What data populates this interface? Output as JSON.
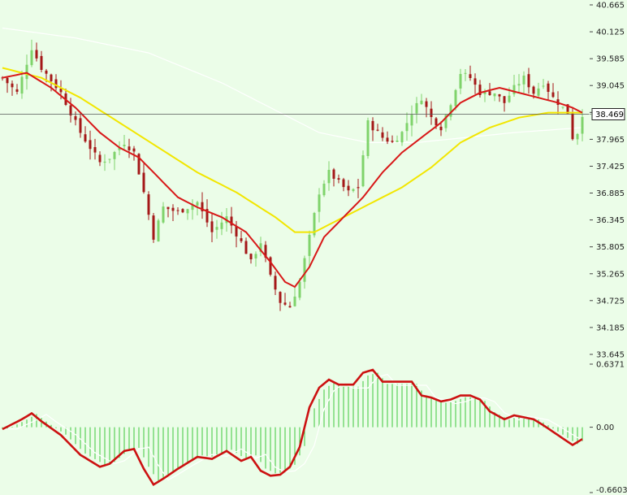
{
  "chart_data": [
    {
      "type": "candlestick",
      "panel": "price",
      "title": "",
      "ylim": [
        33.645,
        40.665
      ],
      "y_ticks": [
        "40.665",
        "40.125",
        "39.585",
        "39.045",
        "38.505",
        "37.965",
        "37.425",
        "36.885",
        "36.345",
        "35.805",
        "35.265",
        "34.725",
        "34.185",
        "33.645"
      ],
      "current_price": "38.469",
      "candle_count": 120,
      "colors": {
        "up": "#7fd36b",
        "down": "#a41818",
        "ma_fast": "#d81818",
        "ma_slow": "#f2e600",
        "ma_long": "#ffffff",
        "price_line": "#555555"
      },
      "close_path": [
        [
          0,
          39.2
        ],
        [
          3,
          38.9
        ],
        [
          6,
          39.8
        ],
        [
          8,
          39.4
        ],
        [
          12,
          38.9
        ],
        [
          16,
          38.1
        ],
        [
          20,
          37.5
        ],
        [
          22,
          37.6
        ],
        [
          25,
          37.9
        ],
        [
          27,
          37.7
        ],
        [
          29,
          36.9
        ],
        [
          31,
          36.0
        ],
        [
          33,
          36.6
        ],
        [
          36,
          36.5
        ],
        [
          40,
          36.7
        ],
        [
          43,
          36.1
        ],
        [
          46,
          36.4
        ],
        [
          49,
          35.9
        ],
        [
          51,
          35.5
        ],
        [
          53,
          35.9
        ],
        [
          55,
          35.2
        ],
        [
          57,
          34.7
        ],
        [
          59,
          34.6
        ],
        [
          61,
          35.1
        ],
        [
          63,
          36.0
        ],
        [
          65,
          36.9
        ],
        [
          67,
          37.3
        ],
        [
          69,
          37.1
        ],
        [
          71,
          36.9
        ],
        [
          73,
          37.0
        ],
        [
          75,
          38.3
        ],
        [
          78,
          38.0
        ],
        [
          80,
          37.9
        ],
        [
          82,
          38.1
        ],
        [
          84,
          38.5
        ],
        [
          86,
          38.8
        ],
        [
          88,
          38.4
        ],
        [
          90,
          38.2
        ],
        [
          92,
          38.7
        ],
        [
          94,
          39.3
        ],
        [
          96,
          39.2
        ],
        [
          98,
          38.9
        ],
        [
          101,
          38.9
        ],
        [
          103,
          38.7
        ],
        [
          105,
          39.0
        ],
        [
          107,
          39.2
        ],
        [
          109,
          38.9
        ],
        [
          111,
          39.1
        ],
        [
          113,
          38.8
        ],
        [
          116,
          38.5
        ],
        [
          117,
          38.0
        ],
        [
          118,
          38.1
        ],
        [
          119,
          38.47
        ]
      ],
      "ma_fast_path": [
        [
          0,
          39.2
        ],
        [
          5,
          39.3
        ],
        [
          10,
          39.0
        ],
        [
          15,
          38.6
        ],
        [
          20,
          38.1
        ],
        [
          24,
          37.8
        ],
        [
          28,
          37.6
        ],
        [
          32,
          37.2
        ],
        [
          36,
          36.8
        ],
        [
          40,
          36.6
        ],
        [
          45,
          36.4
        ],
        [
          50,
          36.1
        ],
        [
          55,
          35.5
        ],
        [
          58,
          35.1
        ],
        [
          60,
          35.0
        ],
        [
          63,
          35.4
        ],
        [
          66,
          36.0
        ],
        [
          70,
          36.4
        ],
        [
          74,
          36.8
        ],
        [
          78,
          37.3
        ],
        [
          82,
          37.7
        ],
        [
          86,
          38.0
        ],
        [
          90,
          38.3
        ],
        [
          94,
          38.7
        ],
        [
          98,
          38.9
        ],
        [
          102,
          39.0
        ],
        [
          106,
          38.9
        ],
        [
          110,
          38.8
        ],
        [
          114,
          38.7
        ],
        [
          117,
          38.6
        ],
        [
          119,
          38.5
        ]
      ],
      "ma_slow_path": [
        [
          0,
          39.4
        ],
        [
          8,
          39.2
        ],
        [
          16,
          38.8
        ],
        [
          24,
          38.3
        ],
        [
          32,
          37.8
        ],
        [
          40,
          37.3
        ],
        [
          48,
          36.9
        ],
        [
          56,
          36.4
        ],
        [
          60,
          36.1
        ],
        [
          64,
          36.1
        ],
        [
          70,
          36.4
        ],
        [
          76,
          36.7
        ],
        [
          82,
          37.0
        ],
        [
          88,
          37.4
        ],
        [
          94,
          37.9
        ],
        [
          100,
          38.2
        ],
        [
          106,
          38.4
        ],
        [
          112,
          38.5
        ],
        [
          119,
          38.5
        ]
      ],
      "ma_long_path": [
        [
          0,
          40.2
        ],
        [
          15,
          40.0
        ],
        [
          30,
          39.7
        ],
        [
          45,
          39.1
        ],
        [
          55,
          38.6
        ],
        [
          65,
          38.1
        ],
        [
          75,
          37.9
        ],
        [
          85,
          37.9
        ],
        [
          95,
          38.0
        ],
        [
          105,
          38.1
        ],
        [
          119,
          38.2
        ]
      ]
    },
    {
      "type": "histogram",
      "panel": "oscillator",
      "title": "",
      "ylim": [
        -0.6603,
        0.6371
      ],
      "y_ticks": [
        "0.6371",
        "0.00",
        "-0.6603"
      ],
      "zero_line": 0,
      "bar_color": "#3cc83c",
      "signal_color": "#cc1111",
      "trail_color": "#ffffff",
      "signal_path": [
        [
          0,
          -0.02
        ],
        [
          4,
          0.08
        ],
        [
          6,
          0.14
        ],
        [
          8,
          0.06
        ],
        [
          12,
          -0.08
        ],
        [
          16,
          -0.28
        ],
        [
          20,
          -0.4
        ],
        [
          22,
          -0.37
        ],
        [
          25,
          -0.24
        ],
        [
          27,
          -0.22
        ],
        [
          29,
          -0.42
        ],
        [
          31,
          -0.58
        ],
        [
          33,
          -0.52
        ],
        [
          36,
          -0.42
        ],
        [
          40,
          -0.3
        ],
        [
          43,
          -0.32
        ],
        [
          46,
          -0.24
        ],
        [
          49,
          -0.34
        ],
        [
          51,
          -0.3
        ],
        [
          53,
          -0.44
        ],
        [
          55,
          -0.49
        ],
        [
          57,
          -0.48
        ],
        [
          59,
          -0.4
        ],
        [
          61,
          -0.2
        ],
        [
          63,
          0.2
        ],
        [
          65,
          0.4
        ],
        [
          67,
          0.48
        ],
        [
          69,
          0.43
        ],
        [
          72,
          0.43
        ],
        [
          74,
          0.55
        ],
        [
          76,
          0.58
        ],
        [
          78,
          0.46
        ],
        [
          80,
          0.46
        ],
        [
          82,
          0.46
        ],
        [
          84,
          0.46
        ],
        [
          86,
          0.32
        ],
        [
          88,
          0.3
        ],
        [
          90,
          0.26
        ],
        [
          92,
          0.28
        ],
        [
          94,
          0.32
        ],
        [
          96,
          0.32
        ],
        [
          98,
          0.28
        ],
        [
          100,
          0.16
        ],
        [
          103,
          0.08
        ],
        [
          105,
          0.12
        ],
        [
          107,
          0.1
        ],
        [
          109,
          0.08
        ],
        [
          111,
          0.02
        ],
        [
          114,
          -0.08
        ],
        [
          117,
          -0.18
        ],
        [
          119,
          -0.12
        ]
      ]
    }
  ]
}
